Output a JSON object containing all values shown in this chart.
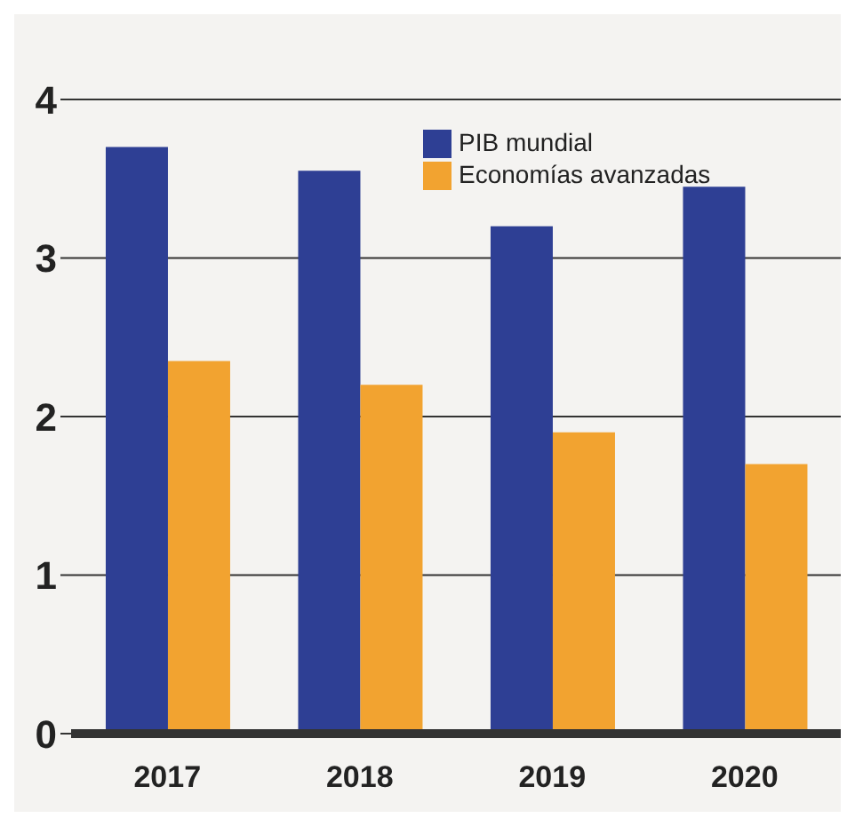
{
  "chart_data": {
    "type": "bar",
    "categories": [
      "2017",
      "2018",
      "2019",
      "2020"
    ],
    "series": [
      {
        "name": "PIB mundial",
        "color": "#2e3f94",
        "values": [
          3.7,
          3.55,
          3.2,
          3.45
        ]
      },
      {
        "name": "Economías avanzadas",
        "color": "#f2a330",
        "values": [
          2.35,
          2.2,
          1.9,
          1.7
        ]
      }
    ],
    "ylim": [
      0,
      4
    ],
    "yticks": [
      0,
      1,
      2,
      3,
      4
    ],
    "grid": "y",
    "legend": "top"
  }
}
